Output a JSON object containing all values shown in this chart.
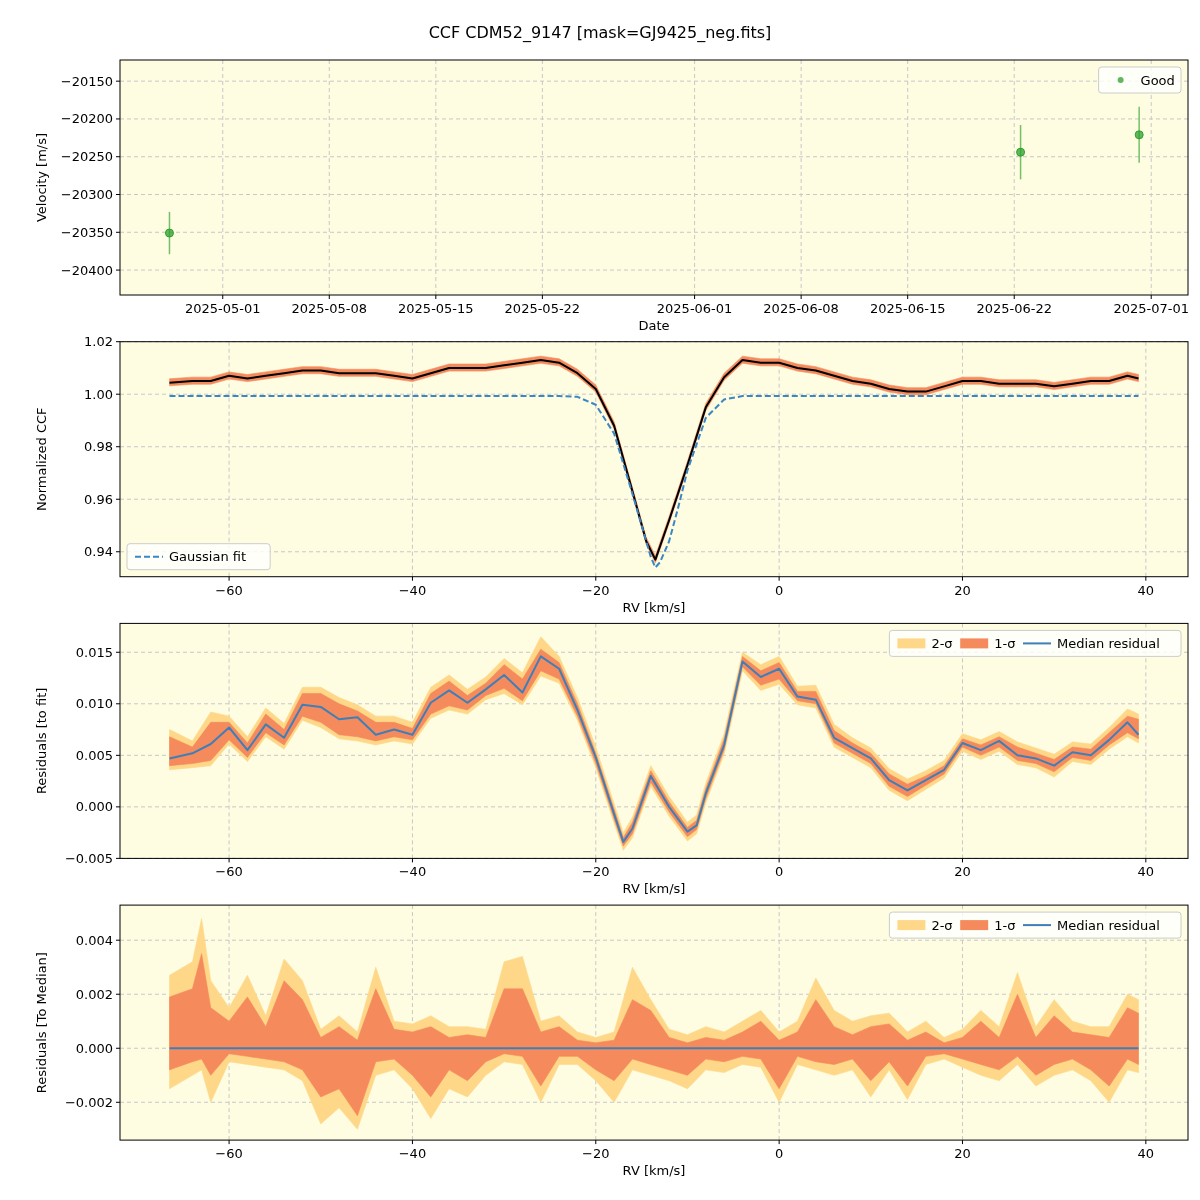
{
  "chart_data": [
    {
      "type": "scatter",
      "title": "CCF CDM52_9147 [mask=GJ9425_neg.fits]",
      "xlabel": "Date",
      "ylabel": "Velocity [m/s]",
      "x": [
        "2025-04-27T12:00",
        "2025-06-22T10:00",
        "2025-06-30T05:00"
      ],
      "series": [
        {
          "name": "Good",
          "color": "#2ca02c",
          "values": [
            -20351,
            -20244,
            -20221
          ],
          "errors": [
            28,
            36,
            37
          ]
        }
      ],
      "xlim": [
        "2025-04-24T06:00",
        "2025-07-03T10:00"
      ],
      "xticks": [
        "2025-05-01",
        "2025-05-08",
        "2025-05-15",
        "2025-05-22",
        "2025-06-01",
        "2025-06-08",
        "2025-06-15",
        "2025-06-22",
        "2025-07-01"
      ],
      "ylim": [
        -20433,
        -20122
      ],
      "yticks": [
        -20400,
        -20350,
        -20300,
        -20250,
        -20200,
        -20150
      ],
      "grid": true,
      "legend": "top right",
      "marker": "circle"
    },
    {
      "type": "line",
      "xlabel": "RV [km/s]",
      "ylabel": "Normalized CCF",
      "series": [
        {
          "color": "#f58a5c",
          "x": [
            -66.5,
            -64,
            -62,
            -60,
            -58,
            -56,
            -54,
            -52,
            -50,
            -48,
            -46,
            -44,
            -42,
            -40,
            -38,
            -36,
            -34,
            -32,
            -30,
            -28,
            -26,
            -24,
            -22,
            -20,
            -18,
            -16,
            -14.5,
            -13.5,
            -12,
            -10,
            -8,
            -6,
            -4,
            -2,
            0,
            2,
            4,
            6,
            8,
            10,
            12,
            14,
            16,
            18,
            20,
            22,
            24,
            26,
            28,
            30,
            32,
            34,
            36,
            38,
            39.2
          ],
          "values": [
            null,
            null,
            null,
            null,
            null,
            null,
            null,
            null,
            null,
            null,
            null,
            null,
            null,
            null,
            null,
            null,
            null,
            null,
            null,
            null,
            null,
            null,
            null,
            null,
            null,
            null,
            null,
            null,
            null,
            null,
            null,
            null,
            null,
            null,
            null,
            null,
            null,
            null,
            null,
            null,
            null,
            null,
            null,
            null,
            null,
            null,
            null,
            null,
            null,
            null,
            null,
            null,
            null,
            null,
            null
          ],
          "lower": [
            1.0032,
            1.0038,
            1.0038,
            1.0058,
            1.0048,
            1.0058,
            1.0068,
            1.0078,
            1.0078,
            1.0068,
            1.0068,
            1.0068,
            1.0058,
            1.0048,
            1.0068,
            1.0088,
            1.0088,
            1.0088,
            1.0098,
            1.0108,
            1.0118,
            1.0108,
            1.0068,
            1.0008,
            0.9868,
            0.9618,
            0.9428,
            0.9358,
            0.9508,
            0.9718,
            0.9938,
            1.0053,
            1.0118,
            1.0108,
            1.0108,
            1.0088,
            1.0078,
            1.0058,
            1.0038,
            1.0028,
            1.0008,
            0.9998,
            0.9998,
            1.0018,
            1.0038,
            1.0038,
            1.0028,
            1.0028,
            1.0028,
            1.0018,
            1.0028,
            1.0038,
            1.0038,
            1.0058,
            1.0048
          ],
          "upper": [
            1.0059,
            1.0065,
            1.0065,
            1.0085,
            1.0075,
            1.0085,
            1.0095,
            1.0105,
            1.0105,
            1.0095,
            1.0095,
            1.0095,
            1.0085,
            1.0075,
            1.0095,
            1.0115,
            1.0115,
            1.0115,
            1.0125,
            1.0135,
            1.0145,
            1.0135,
            1.0095,
            1.0035,
            0.9895,
            0.9645,
            0.9455,
            0.9385,
            0.9535,
            0.9745,
            0.9965,
            1.008,
            1.0145,
            1.0135,
            1.0135,
            1.0115,
            1.0105,
            1.0085,
            1.0065,
            1.0055,
            1.0035,
            1.0025,
            1.0025,
            1.0045,
            1.0065,
            1.0065,
            1.0055,
            1.0055,
            1.0055,
            1.0045,
            1.0055,
            1.0065,
            1.0065,
            1.0085,
            1.0075
          ]
        },
        {
          "color": "#000000",
          "x": [
            -66.5,
            -64,
            -62,
            -60,
            -58,
            -56,
            -54,
            -52,
            -50,
            -48,
            -46,
            -44,
            -42,
            -40,
            -38,
            -36,
            -34,
            -32,
            -30,
            -28,
            -26,
            -24,
            -22,
            -20,
            -18,
            -16,
            -14.5,
            -13.5,
            -12,
            -10,
            -8,
            -6,
            -4,
            -2,
            0,
            2,
            4,
            6,
            8,
            10,
            12,
            14,
            16,
            18,
            20,
            22,
            24,
            26,
            28,
            30,
            32,
            34,
            36,
            38,
            39.2
          ],
          "values": [
            1.0044,
            1.005,
            1.005,
            1.007,
            1.006,
            1.007,
            1.008,
            1.009,
            1.009,
            1.008,
            1.008,
            1.008,
            1.007,
            1.006,
            1.008,
            1.01,
            1.01,
            1.01,
            1.011,
            1.012,
            1.013,
            1.012,
            1.008,
            1.002,
            0.988,
            0.963,
            0.944,
            0.937,
            0.952,
            0.973,
            0.995,
            1.0065,
            1.013,
            1.012,
            1.012,
            1.01,
            1.009,
            1.007,
            1.005,
            1.004,
            1.002,
            1.001,
            1.001,
            1.003,
            1.005,
            1.005,
            1.004,
            1.004,
            1.004,
            1.003,
            1.004,
            1.005,
            1.005,
            1.007,
            1.006
          ]
        },
        {
          "name": "Gaussian fit",
          "color": "#3b87c4",
          "line_style": "dashed",
          "x": [
            -66.5,
            -24,
            -22,
            -20,
            -18,
            -16,
            -15,
            -14,
            -13.5,
            -13,
            -12,
            -11,
            -10,
            -8,
            -6,
            -4,
            39.2
          ],
          "values": [
            0.9993,
            0.9993,
            0.999,
            0.996,
            0.985,
            0.962,
            0.95,
            0.938,
            0.934,
            0.936,
            0.944,
            0.957,
            0.971,
            0.991,
            0.998,
            0.9993,
            0.9993
          ]
        }
      ],
      "xlim": [
        -71.9,
        44.6
      ],
      "xticks": [
        -60,
        -40,
        -20,
        0,
        20,
        40
      ],
      "ylim": [
        0.9305,
        1.02
      ],
      "yticks": [
        0.94,
        0.96,
        0.98,
        {
          "value": 1,
          "label": "1.00"
        },
        1.02
      ],
      "grid": true,
      "legend": "bottom left"
    },
    {
      "type": "line",
      "xlabel": "RV [km/s]",
      "ylabel": "Residuals [to fit]",
      "x": [
        -66.5,
        -64,
        -62,
        -60,
        -58,
        -56,
        -54,
        -52,
        -50,
        -48,
        -46,
        -44,
        -42,
        -40,
        -38,
        -36,
        -34,
        -32,
        -30,
        -28,
        -26,
        -24,
        -22,
        -20,
        -18,
        -17,
        -16,
        -14,
        -12,
        -10,
        -9,
        -8,
        -6,
        -4,
        -2,
        0,
        2,
        4,
        6,
        8,
        10,
        12,
        14,
        16,
        18,
        20,
        22,
        24,
        26,
        28,
        30,
        32,
        34,
        36,
        38,
        39.2
      ],
      "series": [
        {
          "name": "2-σ",
          "color": "#fed888",
          "values": [
            null,
            null,
            null,
            null,
            null,
            null,
            null,
            null,
            null,
            null,
            null,
            null,
            null,
            null,
            null,
            null,
            null,
            null,
            null,
            null,
            null,
            null,
            null,
            null,
            null,
            null,
            null,
            null,
            null,
            null,
            null,
            null,
            null,
            null,
            null,
            null,
            null,
            null,
            null,
            null,
            null,
            null,
            null,
            null,
            null,
            null,
            null,
            null,
            null,
            null,
            null,
            null,
            null,
            null,
            null,
            null
          ],
          "lower": [
            0.0036,
            0.0038,
            0.004,
            0.0061,
            0.0044,
            0.0068,
            0.0056,
            0.0084,
            0.0077,
            0.0066,
            0.0064,
            0.006,
            0.0064,
            0.0061,
            0.0086,
            0.0094,
            0.009,
            0.0104,
            0.011,
            0.0099,
            0.0127,
            0.012,
            0.0084,
            0.0038,
            -0.0016,
            -0.0042,
            -0.003,
            0.002,
            -0.0009,
            -0.0033,
            -0.0026,
            0.0004,
            0.0051,
            0.0132,
            0.0113,
            0.0119,
            0.0099,
            0.0096,
            0.0058,
            0.0048,
            0.0038,
            0.0016,
            0.0006,
            0.0017,
            0.0028,
            0.0054,
            0.0046,
            0.0054,
            0.0041,
            0.0038,
            0.0029,
            0.0044,
            0.0041,
            0.0056,
            0.0068,
            0.0062
          ],
          "upper": [
            0.0075,
            0.0064,
            0.0092,
            0.0088,
            0.0068,
            0.0096,
            0.0081,
            0.0116,
            0.0116,
            0.0106,
            0.0099,
            0.0088,
            0.0088,
            0.0082,
            0.0116,
            0.0128,
            0.0114,
            0.0126,
            0.0144,
            0.013,
            0.0165,
            0.0146,
            0.0106,
            0.0058,
            0.0003,
            -0.0025,
            -0.001,
            0.004,
            0.001,
            -0.0015,
            -0.0008,
            0.0023,
            0.0071,
            0.015,
            0.0138,
            0.0146,
            0.0117,
            0.0118,
            0.008,
            0.0067,
            0.0057,
            0.0037,
            0.0027,
            0.0035,
            0.0045,
            0.0071,
            0.0065,
            0.0073,
            0.0063,
            0.0057,
            0.0051,
            0.0063,
            0.0061,
            0.0077,
            0.0095,
            0.009
          ]
        },
        {
          "name": "1-σ",
          "color": "#f58a5c",
          "values": [
            null,
            null,
            null,
            null,
            null,
            null,
            null,
            null,
            null,
            null,
            null,
            null,
            null,
            null,
            null,
            null,
            null,
            null,
            null,
            null,
            null,
            null,
            null,
            null,
            null,
            null,
            null,
            null,
            null,
            null,
            null,
            null,
            null,
            null,
            null,
            null,
            null,
            null,
            null,
            null,
            null,
            null,
            null,
            null,
            null,
            null,
            null,
            null,
            null,
            null,
            null,
            null,
            null,
            null,
            null,
            null
          ],
          "lower": [
            0.004,
            0.0042,
            0.0045,
            0.0065,
            0.0048,
            0.0072,
            0.006,
            0.0088,
            0.0082,
            0.007,
            0.0068,
            0.0064,
            0.0068,
            0.0065,
            0.009,
            0.0098,
            0.0094,
            0.0108,
            0.0115,
            0.0103,
            0.0132,
            0.0124,
            0.0088,
            0.0042,
            -0.0012,
            -0.0038,
            -0.0026,
            0.0024,
            -0.0005,
            -0.0029,
            -0.0022,
            0.0008,
            0.0055,
            0.0136,
            0.0118,
            0.0124,
            0.0103,
            0.01,
            0.0062,
            0.0052,
            0.0042,
            0.002,
            0.001,
            0.0021,
            0.0032,
            0.0058,
            0.005,
            0.0058,
            0.0045,
            0.0042,
            0.0034,
            0.0048,
            0.0045,
            0.006,
            0.0072,
            0.0066
          ],
          "upper": [
            0.0068,
            0.0058,
            0.0082,
            0.0082,
            0.0062,
            0.009,
            0.0075,
            0.011,
            0.011,
            0.01,
            0.0093,
            0.0082,
            0.0082,
            0.0076,
            0.011,
            0.0122,
            0.0108,
            0.012,
            0.0138,
            0.0124,
            0.0153,
            0.014,
            0.01,
            0.0052,
            -0.0002,
            -0.003,
            -0.0015,
            0.0035,
            0.0005,
            -0.002,
            -0.0013,
            0.0018,
            0.0066,
            0.0146,
            0.0132,
            0.014,
            0.0112,
            0.0112,
            0.0074,
            0.0062,
            0.0052,
            0.0032,
            0.0022,
            0.003,
            0.004,
            0.0066,
            0.006,
            0.0068,
            0.0058,
            0.0052,
            0.0046,
            0.0058,
            0.0056,
            0.0072,
            0.0088,
            0.0085
          ]
        },
        {
          "name": "Median residual",
          "color": "#3f7fb8",
          "values": [
            0.0047,
            0.0052,
            0.0061,
            0.0077,
            0.0055,
            0.008,
            0.0067,
            0.0099,
            0.0097,
            0.0085,
            0.0087,
            0.007,
            0.0075,
            0.007,
            0.0101,
            0.0113,
            0.0101,
            0.0114,
            0.0128,
            0.0111,
            0.0146,
            0.0134,
            0.0094,
            0.0048,
            -0.0007,
            -0.0034,
            -0.0021,
            0.003,
            0.0,
            -0.0024,
            -0.0018,
            0.0013,
            0.006,
            0.0141,
            0.0126,
            0.0134,
            0.0107,
            0.0104,
            0.0067,
            0.0057,
            0.0047,
            0.0026,
            0.0016,
            0.0026,
            0.0036,
            0.0062,
            0.0055,
            0.0064,
            0.005,
            0.0047,
            0.004,
            0.0053,
            0.005,
            0.0065,
            0.0082,
            0.007
          ]
        }
      ],
      "xlim": [
        -71.9,
        44.6
      ],
      "xticks": [
        -60,
        -40,
        -20,
        0,
        20,
        40
      ],
      "ylim": [
        -0.005,
        0.0178
      ],
      "yticks": [
        -0.005,
        {
          "value": 0,
          "label": "0.000"
        },
        0.005,
        {
          "value": 0.01,
          "label": "0.010"
        },
        0.015
      ],
      "grid": true,
      "legend": "top right"
    },
    {
      "type": "line",
      "xlabel": "RV [km/s]",
      "ylabel": "Residuals [To Median]",
      "x": [
        -66.5,
        -64,
        -63,
        -62,
        -60,
        -58,
        -56,
        -54,
        -52,
        -50,
        -48,
        -46,
        -44,
        -42,
        -40,
        -38,
        -36,
        -34,
        -32,
        -30,
        -28,
        -26,
        -24,
        -22,
        -20,
        -18,
        -16,
        -14,
        -12,
        -10,
        -8,
        -6,
        -4,
        -2,
        0,
        2,
        4,
        6,
        8,
        10,
        12,
        14,
        16,
        18,
        20,
        22,
        24,
        26,
        28,
        30,
        32,
        34,
        36,
        38,
        39.2
      ],
      "series": [
        {
          "name": "2-σ",
          "color": "#fed888",
          "values": [
            null,
            null,
            null,
            null,
            null,
            null,
            null,
            null,
            null,
            null,
            null,
            null,
            null,
            null,
            null,
            null,
            null,
            null,
            null,
            null,
            null,
            null,
            null,
            null,
            null,
            null,
            null,
            null,
            null,
            null,
            null,
            null,
            null,
            null,
            null,
            null,
            null,
            null,
            null,
            null,
            null,
            null,
            null,
            null,
            null,
            null,
            null,
            null,
            null,
            null,
            null,
            null,
            null,
            null,
            null
          ],
          "lower": [
            -0.0015,
            -0.001,
            -0.0008,
            -0.002,
            -0.0005,
            -0.0006,
            -0.0007,
            -0.0008,
            -0.0012,
            -0.0028,
            -0.0022,
            -0.003,
            -0.001,
            -0.0008,
            -0.0015,
            -0.0026,
            -0.0015,
            -0.0018,
            -0.001,
            -0.0005,
            -0.0006,
            -0.002,
            -0.0006,
            -0.0006,
            -0.0012,
            -0.002,
            -0.0008,
            -0.001,
            -0.0012,
            -0.0015,
            -0.0008,
            -0.0009,
            -0.0006,
            -0.0007,
            -0.002,
            -0.0006,
            -0.0008,
            -0.001,
            -0.0008,
            -0.0018,
            -0.0008,
            -0.0019,
            -0.0006,
            -0.0004,
            -0.0007,
            -0.001,
            -0.0012,
            -0.0006,
            -0.0014,
            -0.001,
            -0.0008,
            -0.0012,
            -0.002,
            -0.0008,
            -0.0009
          ],
          "upper": [
            0.0027,
            0.0032,
            0.0048,
            0.0025,
            0.0015,
            0.0027,
            0.0012,
            0.0033,
            0.0025,
            0.0007,
            0.0012,
            0.0006,
            0.003,
            0.001,
            0.0009,
            0.0012,
            0.0008,
            0.0008,
            0.0007,
            0.0032,
            0.0034,
            0.001,
            0.0012,
            0.0006,
            0.0004,
            0.0006,
            0.003,
            0.0018,
            0.0007,
            0.0005,
            0.0008,
            0.0006,
            0.001,
            0.0014,
            0.0006,
            0.001,
            0.0026,
            0.0014,
            0.001,
            0.0012,
            0.0013,
            0.0006,
            0.001,
            0.0004,
            0.0007,
            0.0014,
            0.0008,
            0.0028,
            0.0008,
            0.0018,
            0.001,
            0.0008,
            0.0008,
            0.002,
            0.0018
          ]
        },
        {
          "name": "1-σ",
          "color": "#f58a5c",
          "values": [
            null,
            null,
            null,
            null,
            null,
            null,
            null,
            null,
            null,
            null,
            null,
            null,
            null,
            null,
            null,
            null,
            null,
            null,
            null,
            null,
            null,
            null,
            null,
            null,
            null,
            null,
            null,
            null,
            null,
            null,
            null,
            null,
            null,
            null,
            null,
            null,
            null,
            null,
            null,
            null,
            null,
            null,
            null,
            null,
            null,
            null,
            null,
            null,
            null,
            null,
            null,
            null,
            null,
            null,
            null
          ],
          "lower": [
            -0.0008,
            -0.0005,
            -0.0004,
            -0.001,
            -0.0002,
            -0.0003,
            -0.0004,
            -0.0005,
            -0.0008,
            -0.0018,
            -0.0015,
            -0.0025,
            -0.0005,
            -0.0004,
            -0.001,
            -0.0018,
            -0.0008,
            -0.0012,
            -0.0005,
            -0.0002,
            -0.0003,
            -0.0014,
            -0.0003,
            -0.0003,
            -0.0008,
            -0.0012,
            -0.0004,
            -0.0006,
            -0.0008,
            -0.001,
            -0.0004,
            -0.0005,
            -0.0003,
            -0.0004,
            -0.0015,
            -0.0003,
            -0.0005,
            -0.0006,
            -0.0004,
            -0.0012,
            -0.0005,
            -0.0014,
            -0.0003,
            -0.0002,
            -0.0004,
            -0.0006,
            -0.0008,
            -0.0003,
            -0.001,
            -0.0006,
            -0.0004,
            -0.0008,
            -0.0014,
            -0.0004,
            -0.0006
          ],
          "upper": [
            0.0019,
            0.0022,
            0.0035,
            0.0015,
            0.001,
            0.0019,
            0.0008,
            0.0025,
            0.0018,
            0.0004,
            0.0008,
            0.0003,
            0.0022,
            0.0007,
            0.0006,
            0.0008,
            0.0004,
            0.0005,
            0.0004,
            0.0022,
            0.0022,
            0.0006,
            0.0008,
            0.0003,
            0.0002,
            0.0003,
            0.0018,
            0.0014,
            0.0004,
            0.0002,
            0.0004,
            0.0003,
            0.0006,
            0.001,
            0.0003,
            0.0006,
            0.0018,
            0.0008,
            0.0005,
            0.0008,
            0.0009,
            0.0003,
            0.0006,
            0.0002,
            0.0004,
            0.001,
            0.0004,
            0.002,
            0.0004,
            0.0012,
            0.0006,
            0.0005,
            0.0004,
            0.0015,
            0.0013
          ]
        },
        {
          "name": "Median residual",
          "color": "#3f7fb8",
          "x": [
            -66.5,
            39.2
          ],
          "values": [
            0,
            0
          ]
        }
      ],
      "xlim": [
        -71.9,
        44.6
      ],
      "xticks": [
        -60,
        -40,
        -20,
        0,
        20,
        40
      ],
      "ylim": [
        -0.0034,
        0.0053
      ],
      "yticks": [
        -0.002,
        {
          "value": 0,
          "label": "0.000"
        },
        0.002,
        0.004
      ],
      "grid": true,
      "legend": "top right"
    }
  ]
}
